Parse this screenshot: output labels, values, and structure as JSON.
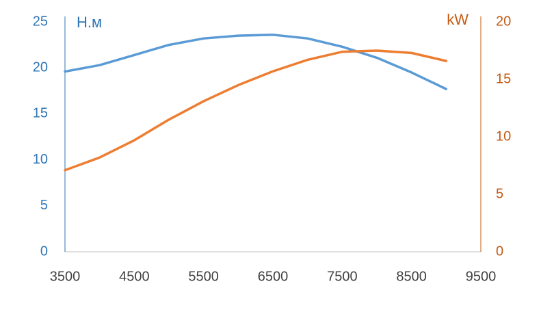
{
  "chart_data": {
    "type": "line",
    "y_label": "Н.м",
    "y2_label": "kW",
    "x": [
      3500,
      4000,
      4500,
      5000,
      5500,
      6000,
      6500,
      7000,
      7500,
      8000,
      8500,
      9000
    ],
    "series": [
      {
        "color": "#5b9bd5",
        "values": [
          19.6,
          20.3,
          21.4,
          22.5,
          23.2,
          23.5,
          23.6,
          23.2,
          22.3,
          21.1,
          19.5,
          17.7
        ]
      },
      {
        "color": "#ed7d31",
        "axis": "y2",
        "values": [
          7.1,
          8.2,
          9.7,
          11.5,
          13.1,
          14.5,
          15.7,
          16.7,
          17.4,
          17.5,
          17.3,
          16.6
        ]
      }
    ],
    "xlim": [
      3500,
      9500
    ],
    "xticks": [
      3500,
      4500,
      5500,
      6500,
      7500,
      8500,
      9500
    ],
    "ylim": [
      0,
      25
    ],
    "yticks": [
      0,
      5,
      10,
      15,
      20,
      25
    ],
    "y2lim": [
      0,
      20
    ],
    "y2ticks": [
      0,
      5,
      10,
      15,
      20
    ],
    "grid": false
  }
}
